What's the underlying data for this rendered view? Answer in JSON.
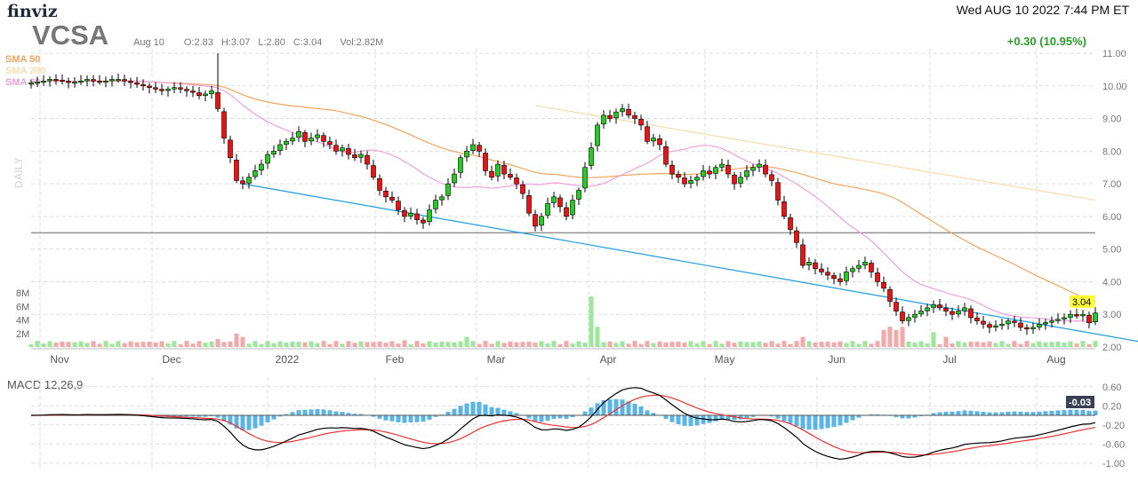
{
  "header": {
    "logo": "finviz",
    "datetime": "Wed AUG 10 2022 7:44 PM ET",
    "ticker": "VCSA",
    "date": "Aug 10",
    "open": "O:2.83",
    "high": "H:3.07",
    "low": "L:2.80",
    "close": "C:3.04",
    "volume": "Vol:2.82M",
    "change": "+0.30 (10.95%)"
  },
  "legend": {
    "sma50": "SMA 50",
    "sma200": "SMA 200",
    "sma20": "SMA 20",
    "daily": "DAILY",
    "macd": "MACD 12,26,9"
  },
  "colors": {
    "up": "#22cc22",
    "down": "#ee1111",
    "sma50": "#f4a460",
    "sma200": "#f5deb3",
    "sma20": "#f0a0d8",
    "trend": "#1e9be0",
    "macd": "#000000",
    "signal": "#ee3333",
    "hist": "#5ab4e6"
  },
  "chart_data": {
    "type": "candlestick",
    "price_ticks": [
      "11.00",
      "10.00",
      "9.00",
      "8.00",
      "7.00",
      "6.00",
      "5.00",
      "4.00",
      "3.00",
      "2.00"
    ],
    "volume_ticks": [
      "8M",
      "6M",
      "4M",
      "2M"
    ],
    "macd_ticks": [
      "0.60",
      "0.20",
      "-0.20",
      "-0.60",
      "-1.00"
    ],
    "month_labels": [
      "Nov",
      "Dec",
      "2022",
      "Feb",
      "Mar",
      "Apr",
      "May",
      "Jun",
      "Jul",
      "Aug"
    ],
    "ylim": [
      2,
      11
    ],
    "last_price": "3.04",
    "last_macd": "-0.03",
    "closes": [
      10.1,
      10.12,
      10.15,
      10.2,
      10.18,
      10.15,
      10.1,
      10.12,
      10.15,
      10.2,
      10.15,
      10.12,
      10.15,
      10.2,
      10.2,
      10.15,
      10.1,
      10.05,
      10.0,
      9.95,
      9.9,
      9.85,
      9.9,
      9.95,
      9.9,
      9.85,
      9.8,
      9.7,
      9.75,
      9.85,
      9.3,
      8.4,
      7.8,
      7.1,
      7.0,
      7.2,
      7.4,
      7.6,
      7.9,
      8.0,
      8.2,
      8.3,
      8.4,
      8.6,
      8.3,
      8.4,
      8.5,
      8.3,
      8.2,
      8.0,
      8.1,
      7.9,
      7.8,
      7.9,
      7.6,
      7.2,
      6.8,
      6.6,
      6.5,
      6.2,
      6.0,
      6.1,
      5.9,
      5.8,
      6.2,
      6.5,
      6.6,
      7.0,
      7.3,
      7.8,
      8.0,
      8.2,
      8.0,
      7.4,
      7.2,
      7.6,
      7.3,
      7.2,
      7.0,
      6.7,
      6.1,
      5.7,
      6.0,
      6.4,
      6.6,
      6.3,
      6.0,
      6.5,
      6.8,
      7.5,
      8.1,
      8.8,
      9.1,
      9.0,
      9.2,
      9.3,
      9.1,
      9.0,
      8.8,
      8.3,
      8.4,
      8.2,
      7.6,
      7.3,
      7.2,
      7.0,
      7.1,
      7.2,
      7.4,
      7.3,
      7.5,
      7.6,
      7.3,
      7.0,
      7.2,
      7.4,
      7.5,
      7.6,
      7.3,
      7.1,
      6.5,
      6.0,
      5.6,
      5.2,
      4.5,
      4.6,
      4.4,
      4.3,
      4.2,
      4.1,
      4.0,
      4.3,
      4.4,
      4.5,
      4.6,
      4.3,
      4.0,
      3.8,
      3.4,
      3.1,
      2.8,
      2.9,
      3.0,
      3.1,
      3.2,
      3.3,
      3.2,
      3.1,
      3.0,
      3.1,
      3.2,
      2.9,
      2.8,
      2.7,
      2.6,
      2.65,
      2.7,
      2.8,
      2.75,
      2.6,
      2.55,
      2.6,
      2.7,
      2.75,
      2.8,
      2.85,
      2.9,
      3.0,
      2.95,
      3.0,
      2.74,
      3.04
    ],
    "volume_spikes": {
      "30": 1.2,
      "33": 2.0,
      "34": 1.5,
      "60": 1.0,
      "70": 1.5,
      "90": 7.5,
      "91": 3.0,
      "124": 1.5,
      "137": 2.5,
      "138": 3.0,
      "139": 2.5,
      "140": 3.0,
      "145": 2.2,
      "147": 1.5,
      "172": 2.82
    },
    "sma200_endpoints": [
      9.4,
      6.5
    ],
    "horizontal_level": 5.5,
    "trendline": [
      7.0,
      2.0
    ]
  }
}
